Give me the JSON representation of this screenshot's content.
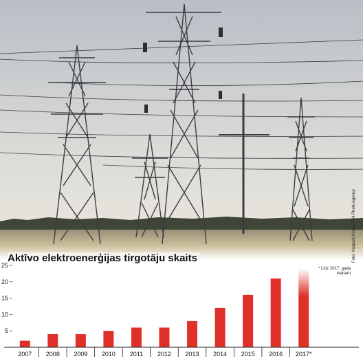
{
  "header": {
    "title": "Aktīvo elektroenerģijas tirgotāju skaits",
    "note_line1": "* Līdz 2017. gada",
    "note_line2": "martam",
    "photo_credit": "Foto: Kaspars Krafts, F64 Photo Agency"
  },
  "colors": {
    "bar": "#e0302a",
    "bar_fade": "#ffffff",
    "sky_top": "#c8ccd2",
    "sky_bottom": "#e6e3dc",
    "grass": "#b8ad8c",
    "tower": "#3a3c40"
  },
  "chart_data": {
    "type": "bar",
    "title": "Aktīvo elektroenerģijas tirgotāju skaits",
    "categories": [
      "2007",
      "2008",
      "2009",
      "2010",
      "2011",
      "2012",
      "2013",
      "2014",
      "2015",
      "2016",
      "2017*"
    ],
    "values": [
      2,
      4,
      4,
      5,
      6,
      6,
      8,
      12,
      16,
      21,
      24
    ],
    "ylim": [
      0,
      25
    ],
    "yticks": [
      5,
      10,
      15,
      20,
      25
    ],
    "xlabel": "",
    "ylabel": "",
    "grid": false
  }
}
